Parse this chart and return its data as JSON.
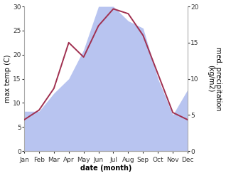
{
  "months": [
    "Jan",
    "Feb",
    "Mar",
    "Apr",
    "May",
    "Jun",
    "Jul",
    "Aug",
    "Sep",
    "Oct",
    "Nov",
    "Dec"
  ],
  "temperature": [
    6.5,
    8.5,
    13.0,
    22.5,
    19.5,
    26.0,
    29.5,
    28.5,
    24.0,
    16.0,
    8.0,
    6.5
  ],
  "precipitation": [
    5.5,
    5.5,
    8.0,
    10.0,
    14.0,
    20.0,
    20.0,
    18.0,
    17.0,
    10.0,
    5.0,
    8.5
  ],
  "temp_color": "#a03050",
  "precip_color": "#b8c4f0",
  "temp_ylim": [
    0,
    30
  ],
  "precip_ylim": [
    0,
    20
  ],
  "temp_yticks": [
    0,
    5,
    10,
    15,
    20,
    25,
    30
  ],
  "precip_yticks": [
    0,
    5,
    10,
    15,
    20
  ],
  "xlabel": "date (month)",
  "ylabel_left": "max temp (C)",
  "ylabel_right": "med. precipitation\n(kg/m2)",
  "bg_color": "#ffffff",
  "label_fontsize": 7,
  "tick_fontsize": 6.5,
  "line_width": 1.4
}
